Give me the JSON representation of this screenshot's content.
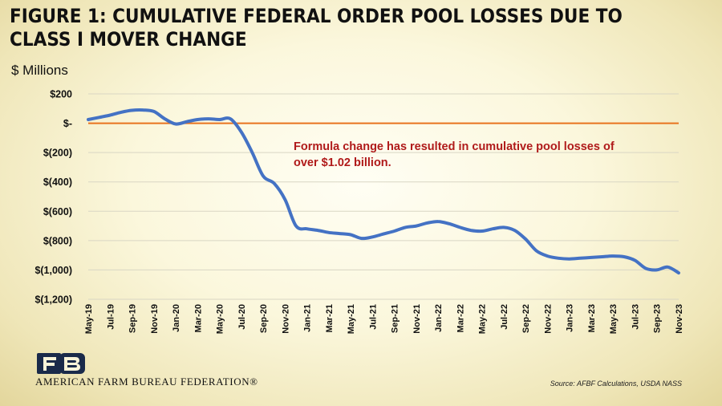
{
  "header": {
    "title": "FIGURE 1: CUMULATIVE FEDERAL ORDER POOL LOSSES DUE TO CLASS I MOVER CHANGE",
    "unit_label": "$ Millions"
  },
  "footer": {
    "organization": "AMERICAN FARM BUREAU FEDERATION®",
    "source": "Source: AFBF Calculations, USDA NASS"
  },
  "colors": {
    "line": "#4472c4",
    "zero_line": "#e8731e",
    "annotation": "#b01a1a",
    "logo": "#1a2a4a"
  },
  "chart_data": {
    "type": "line",
    "ylim": [
      -1200,
      200
    ],
    "yticks": [
      200,
      0,
      -200,
      -400,
      -600,
      -800,
      -1000,
      -1200
    ],
    "ytick_labels": [
      "$200",
      "$-",
      "$(200)",
      "$(400)",
      "$(600)",
      "$(800)",
      "$(1,000)",
      "$(1,200)"
    ],
    "x_tick_labels": [
      "May-19",
      "Jul-19",
      "Sep-19",
      "Nov-19",
      "Jan-20",
      "Mar-20",
      "May-20",
      "Jul-20",
      "Sep-20",
      "Nov-20",
      "Jan-21",
      "Mar-21",
      "May-21",
      "Jul-21",
      "Sep-21",
      "Nov-21",
      "Jan-22",
      "Mar-22",
      "May-22",
      "Jul-22",
      "Sep-22",
      "Nov-22",
      "Jan-23",
      "Mar-23",
      "May-23",
      "Jul-23",
      "Sep-23",
      "Nov-23"
    ],
    "x": [
      "May-19",
      "Jun-19",
      "Jul-19",
      "Aug-19",
      "Sep-19",
      "Oct-19",
      "Nov-19",
      "Dec-19",
      "Jan-20",
      "Feb-20",
      "Mar-20",
      "Apr-20",
      "May-20",
      "Jun-20",
      "Jul-20",
      "Aug-20",
      "Sep-20",
      "Oct-20",
      "Nov-20",
      "Dec-20",
      "Jan-21",
      "Feb-21",
      "Mar-21",
      "Apr-21",
      "May-21",
      "Jun-21",
      "Jul-21",
      "Aug-21",
      "Sep-21",
      "Oct-21",
      "Nov-21",
      "Dec-21",
      "Jan-22",
      "Feb-22",
      "Mar-22",
      "Apr-22",
      "May-22",
      "Jun-22",
      "Jul-22",
      "Aug-22",
      "Sep-22",
      "Oct-22",
      "Nov-22",
      "Dec-22",
      "Jan-23",
      "Feb-23",
      "Mar-23",
      "Apr-23",
      "May-23",
      "Jun-23",
      "Jul-23",
      "Aug-23",
      "Sep-23",
      "Oct-23",
      "Nov-23"
    ],
    "series": [
      {
        "values": [
          25,
          40,
          55,
          75,
          88,
          90,
          80,
          30,
          -5,
          10,
          25,
          30,
          25,
          30,
          -60,
          -200,
          -360,
          -410,
          -520,
          -700,
          -720,
          -730,
          -745,
          -752,
          -760,
          -785,
          -775,
          -755,
          -735,
          -710,
          -700,
          -680,
          -670,
          -685,
          -710,
          -730,
          -735,
          -720,
          -710,
          -730,
          -790,
          -870,
          -905,
          -920,
          -925,
          -920,
          -915,
          -910,
          -905,
          -910,
          -935,
          -990,
          -1000,
          -980,
          -1020
        ]
      }
    ],
    "reference_line": {
      "y": 0
    },
    "annotation": {
      "lines": [
        "Formula change has resulted in cumulative pool losses of",
        "over $1.02 billion."
      ]
    },
    "grid": "horizontal"
  }
}
